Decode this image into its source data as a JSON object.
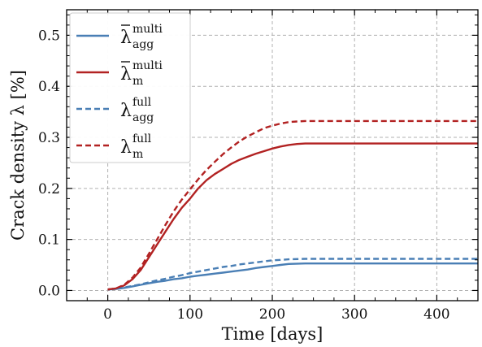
{
  "chart_data": {
    "type": "line",
    "xlabel": "Time [days]",
    "ylabel": "Crack density λ [%]",
    "xlim": [
      -50,
      450
    ],
    "ylim": [
      -0.02,
      0.55
    ],
    "x_ticks": [
      0,
      100,
      200,
      300,
      400
    ],
    "y_ticks": [
      0.0,
      0.1,
      0.2,
      0.3,
      0.4,
      0.5
    ],
    "x_tick_labels": [
      "0",
      "100",
      "200",
      "300",
      "400"
    ],
    "y_tick_labels": [
      "0.0",
      "0.1",
      "0.2",
      "0.3",
      "0.4",
      "0.5"
    ],
    "grid": true,
    "legend_position": "upper left",
    "series": [
      {
        "name": "λ̄ agg multi",
        "color": "#4a7fb5",
        "dash": "solid",
        "x": [
          0,
          10,
          20,
          30,
          40,
          50,
          60,
          70,
          80,
          90,
          100,
          110,
          120,
          130,
          140,
          150,
          160,
          170,
          180,
          190,
          200,
          210,
          220,
          240,
          260,
          300,
          350,
          400,
          450
        ],
        "y": [
          0.002,
          0.003,
          0.005,
          0.008,
          0.011,
          0.014,
          0.017,
          0.019,
          0.022,
          0.024,
          0.027,
          0.029,
          0.031,
          0.033,
          0.035,
          0.037,
          0.039,
          0.041,
          0.044,
          0.046,
          0.048,
          0.05,
          0.052,
          0.053,
          0.053,
          0.053,
          0.053,
          0.053,
          0.053
        ]
      },
      {
        "name": "λ̄ m multi",
        "color": "#b22222",
        "dash": "solid",
        "x": [
          0,
          10,
          20,
          30,
          40,
          50,
          60,
          70,
          80,
          90,
          100,
          110,
          120,
          130,
          140,
          150,
          160,
          170,
          180,
          190,
          200,
          210,
          220,
          230,
          240,
          260,
          300,
          350,
          400,
          450
        ],
        "y": [
          0.002,
          0.004,
          0.01,
          0.022,
          0.04,
          0.065,
          0.09,
          0.115,
          0.14,
          0.162,
          0.18,
          0.2,
          0.216,
          0.228,
          0.238,
          0.248,
          0.256,
          0.262,
          0.268,
          0.273,
          0.278,
          0.282,
          0.285,
          0.287,
          0.288,
          0.288,
          0.288,
          0.288,
          0.288,
          0.288
        ]
      },
      {
        "name": "λ agg full",
        "color": "#4a7fb5",
        "dash": "dashed",
        "x": [
          0,
          10,
          20,
          30,
          40,
          50,
          60,
          70,
          80,
          90,
          100,
          110,
          120,
          130,
          140,
          150,
          160,
          170,
          180,
          190,
          200,
          210,
          220,
          240,
          260,
          300,
          350,
          400,
          450
        ],
        "y": [
          0.002,
          0.003,
          0.006,
          0.009,
          0.012,
          0.016,
          0.02,
          0.023,
          0.027,
          0.03,
          0.034,
          0.037,
          0.04,
          0.043,
          0.046,
          0.048,
          0.051,
          0.053,
          0.055,
          0.057,
          0.059,
          0.06,
          0.061,
          0.062,
          0.062,
          0.062,
          0.062,
          0.062,
          0.062
        ]
      },
      {
        "name": "λ m full",
        "color": "#b22222",
        "dash": "dashed",
        "x": [
          0,
          10,
          20,
          30,
          40,
          50,
          60,
          70,
          80,
          90,
          100,
          110,
          120,
          130,
          140,
          150,
          160,
          170,
          180,
          190,
          200,
          210,
          220,
          230,
          240,
          250,
          260,
          300,
          350,
          400,
          450
        ],
        "y": [
          0.002,
          0.004,
          0.011,
          0.025,
          0.045,
          0.072,
          0.1,
          0.128,
          0.155,
          0.178,
          0.198,
          0.218,
          0.236,
          0.252,
          0.267,
          0.28,
          0.292,
          0.302,
          0.31,
          0.318,
          0.323,
          0.327,
          0.33,
          0.331,
          0.332,
          0.332,
          0.332,
          0.332,
          0.332,
          0.332,
          0.332
        ]
      }
    ],
    "legend": [
      {
        "symbol": "λ",
        "bar": true,
        "sup": "multi",
        "sub": "agg",
        "color": "#4a7fb5",
        "dash": "solid"
      },
      {
        "symbol": "λ",
        "bar": true,
        "sup": "multi",
        "sub": "m",
        "color": "#b22222",
        "dash": "solid"
      },
      {
        "symbol": "λ",
        "bar": false,
        "sup": "full",
        "sub": "agg",
        "color": "#4a7fb5",
        "dash": "dashed"
      },
      {
        "symbol": "λ",
        "bar": false,
        "sup": "full",
        "sub": "m",
        "color": "#b22222",
        "dash": "dashed"
      }
    ]
  }
}
